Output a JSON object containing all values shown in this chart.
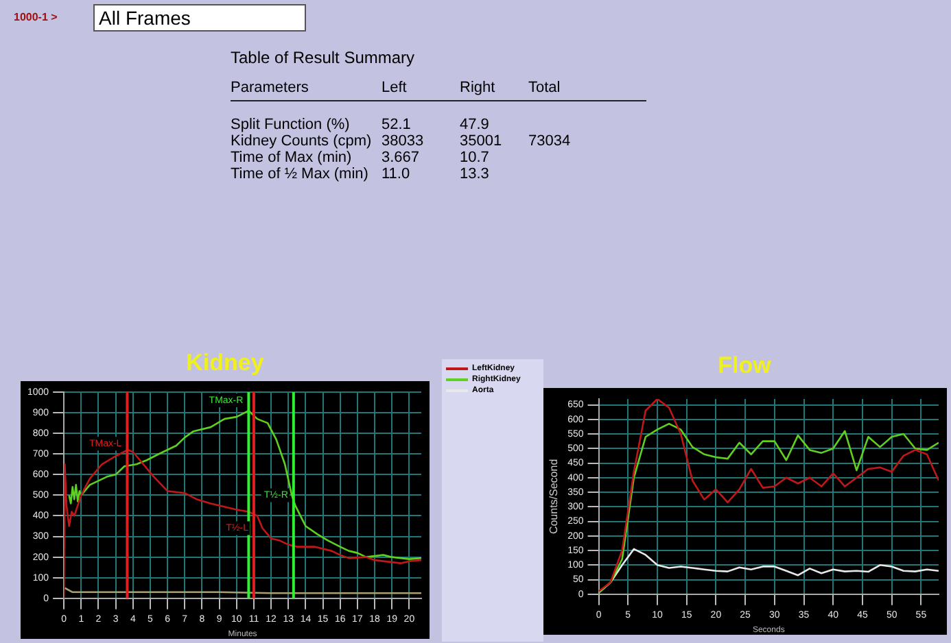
{
  "chart_data": [
    {
      "type": "other",
      "title": "Table of Result Summary",
      "annotations": [
        "1000-1 >",
        "All Frames",
        "Parameters",
        "Left",
        "Right",
        "Total",
        "Split Function (%)",
        "52.1",
        "47.9",
        "Kidney Counts (cpm)",
        "38033",
        "35001",
        "73034",
        "Time of Max (min)",
        "3.667",
        "10.7",
        "Time of ½ Max (min)",
        "11.0",
        "13.3"
      ]
    },
    {
      "type": "line",
      "title": "Kidney",
      "xlabel": "Minutes",
      "xlim": [
        0,
        20.7
      ],
      "xticks": [
        0,
        1,
        2,
        3,
        4,
        5,
        6,
        7,
        8,
        9,
        10,
        11,
        12,
        13,
        14,
        15,
        16,
        17,
        18,
        19,
        20
      ],
      "ylim": [
        0,
        1000
      ],
      "yticks": [
        0,
        100,
        200,
        300,
        400,
        500,
        600,
        700,
        800,
        900,
        1000
      ],
      "grid": true,
      "series": [
        {
          "color": "#c01818",
          "x": [
            0,
            0.05,
            0.15,
            0.3,
            0.45,
            0.6,
            0.8,
            1.0,
            1.5,
            2.2,
            3,
            3.7,
            4.0,
            4.5,
            5.2,
            6,
            7,
            7.7,
            8.5,
            9,
            10,
            10.7,
            11.2,
            11.5,
            12,
            12.5,
            13,
            13.5,
            14.5,
            15.5,
            16,
            16.5,
            17.5,
            18,
            19,
            19.5,
            20,
            20.7
          ],
          "values": [
            0,
            650,
            450,
            350,
            420,
            400,
            450,
            500,
            580,
            650,
            690,
            720,
            710,
            660,
            590,
            520,
            510,
            480,
            460,
            450,
            430,
            420,
            400,
            340,
            290,
            280,
            260,
            250,
            250,
            230,
            210,
            195,
            200,
            185,
            175,
            170,
            180,
            185
          ]
        },
        {
          "color": "#60d020",
          "x": [
            0.3,
            0.4,
            0.5,
            0.6,
            0.7,
            0.8,
            0.9,
            1.0,
            1.5,
            2.5,
            3,
            3.5,
            4.2,
            4.8,
            5.5,
            6.5,
            7,
            7.5,
            8.5,
            9.3,
            10,
            10.7,
            11.2,
            11.8,
            12.3,
            12.8,
            13.2,
            13.4,
            14,
            14.7,
            15.3,
            16,
            16.5,
            17,
            17.5,
            18,
            18.5,
            19,
            19.5,
            20,
            20.7
          ],
          "values": [
            500,
            460,
            540,
            480,
            550,
            470,
            520,
            500,
            550,
            590,
            600,
            640,
            650,
            670,
            700,
            740,
            780,
            810,
            830,
            870,
            880,
            910,
            870,
            850,
            770,
            650,
            500,
            450,
            350,
            310,
            280,
            250,
            230,
            220,
            200,
            205,
            210,
            200,
            195,
            190,
            195
          ]
        },
        {
          "color": "#a8a070",
          "x": [
            0.05,
            0.5,
            1,
            3,
            6,
            9,
            12,
            15,
            18,
            20.7
          ],
          "values": [
            50,
            30,
            30,
            30,
            30,
            30,
            25,
            25,
            25,
            25
          ]
        }
      ],
      "ref_lines": [
        {
          "axis": "x",
          "value": 3.667,
          "color": "#e02020"
        },
        {
          "axis": "x",
          "value": 10.7,
          "color": "#30f030"
        },
        {
          "axis": "x",
          "value": 11.0,
          "color": "#e02020"
        },
        {
          "axis": "x",
          "value": 13.3,
          "color": "#30f030"
        }
      ],
      "annotations": [
        {
          "text": "TMax-L",
          "x": 3.667,
          "y": 750
        },
        {
          "text": "TMax-R",
          "x": 10.7,
          "y": 960
        },
        {
          "text": "T½-L",
          "x": 11.0,
          "y": 340
        },
        {
          "text": "T½-R",
          "x": 13.3,
          "y": 500
        }
      ]
    },
    {
      "type": "line",
      "title": "Flow",
      "xlabel": "Seconds",
      "ylabel": "Counts/Second",
      "xlim": [
        0,
        58
      ],
      "xticks": [
        0,
        5,
        10,
        15,
        20,
        25,
        30,
        35,
        40,
        45,
        50,
        55
      ],
      "ylim": [
        0,
        670
      ],
      "yticks": [
        0,
        50,
        100,
        150,
        200,
        250,
        300,
        350,
        400,
        450,
        500,
        550,
        600,
        650
      ],
      "grid": true,
      "legend": "left",
      "x": [
        0,
        2,
        4,
        6,
        8,
        10,
        12,
        14,
        16,
        18,
        20,
        22,
        24,
        26,
        28,
        30,
        32,
        34,
        36,
        38,
        40,
        42,
        44,
        46,
        48,
        50,
        52,
        54,
        56,
        58
      ],
      "series": [
        {
          "name": "LeftKidney",
          "color": "#c01818",
          "values": [
            10,
            40,
            150,
            420,
            630,
            670,
            640,
            550,
            390,
            325,
            360,
            315,
            360,
            430,
            365,
            370,
            400,
            380,
            400,
            370,
            415,
            370,
            400,
            430,
            435,
            420,
            475,
            495,
            480,
            390
          ]
        },
        {
          "name": "RightKidney",
          "color": "#60d020",
          "values": [
            5,
            40,
            120,
            400,
            540,
            565,
            585,
            565,
            505,
            480,
            470,
            465,
            520,
            480,
            525,
            525,
            460,
            545,
            495,
            485,
            500,
            560,
            425,
            540,
            505,
            540,
            550,
            500,
            495,
            520
          ]
        },
        {
          "name": "Aorta",
          "color": "#e8e8e8",
          "values": [
            5,
            40,
            100,
            155,
            135,
            100,
            90,
            95,
            90,
            85,
            80,
            78,
            92,
            85,
            95,
            95,
            80,
            65,
            88,
            72,
            85,
            78,
            80,
            77,
            100,
            95,
            80,
            78,
            85,
            80
          ]
        }
      ]
    }
  ]
}
